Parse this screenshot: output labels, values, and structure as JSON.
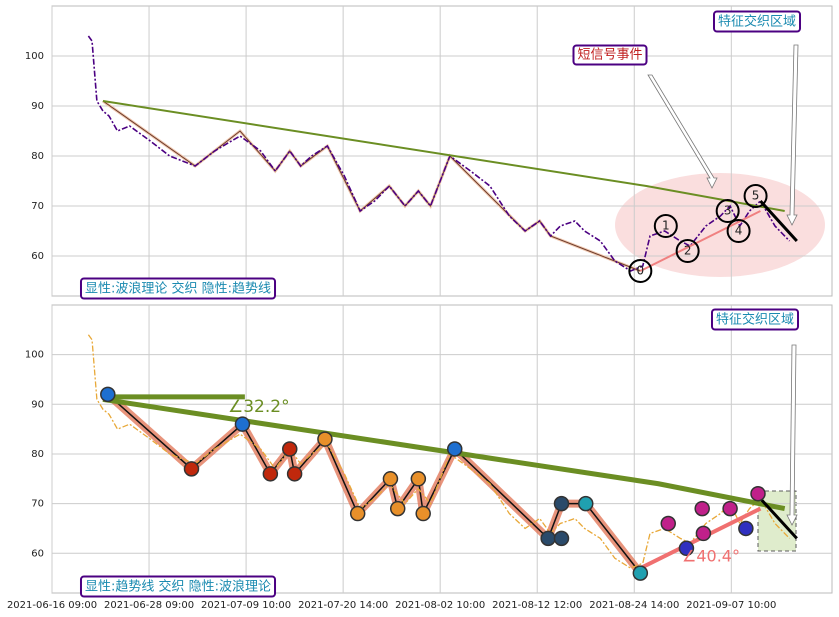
{
  "chart_data": [
    {
      "type": "line",
      "x": [
        30,
        33,
        37,
        42,
        47,
        54,
        64,
        81,
        97,
        118,
        134,
        155,
        172,
        184,
        196,
        205,
        214,
        227,
        241,
        254,
        266,
        278,
        291,
        302,
        312,
        328,
        345,
        361,
        377,
        390,
        402,
        411,
        419,
        431,
        439,
        452,
        464,
        477,
        487,
        493,
        505,
        518,
        526,
        539,
        551,
        559,
        567,
        575,
        584,
        596,
        608
      ],
      "series": [
        {
          "color": "#4b0082",
          "values": [
            104,
            103,
            91,
            89,
            88,
            85,
            86,
            83,
            80,
            78,
            81,
            84,
            81,
            77,
            81,
            78,
            80,
            82,
            76,
            69,
            71,
            74,
            70,
            73,
            70,
            80,
            77,
            74,
            68,
            65,
            67,
            64,
            66,
            67,
            65,
            63,
            59,
            57,
            58,
            64,
            65,
            63,
            62,
            66,
            68,
            70,
            66,
            69,
            71,
            66,
            63
          ]
        }
      ],
      "wave": {
        "color": "#6b3a2a",
        "x": [
          42,
          118,
          155,
          184,
          196,
          205,
          227,
          254,
          278,
          291,
          302,
          312,
          328,
          390,
          402,
          411,
          485
        ],
        "values": [
          91,
          78,
          85,
          77,
          81,
          78,
          82,
          69,
          74,
          70,
          73,
          70,
          80,
          65,
          67,
          64,
          57
        ]
      },
      "trend": {
        "color": "#6b8e23",
        "x": [
          42,
          490,
          604
        ],
        "values": [
          91,
          74,
          69
        ]
      },
      "pink": {
        "color": "#f08080",
        "x": [
          485,
          584
        ],
        "values": [
          57,
          69
        ]
      },
      "black": {
        "color": "#000000",
        "x": [
          584,
          614
        ],
        "values": [
          71,
          63
        ]
      },
      "wave_labels": {
        "labels": [
          "0",
          "1",
          "2",
          "3",
          "4",
          "5"
        ],
        "x": [
          485,
          506,
          524,
          557,
          566,
          580
        ],
        "values": [
          57,
          66,
          61,
          69,
          65,
          72
        ]
      },
      "annotations": [
        "特征交织区域",
        "短信号事件",
        "显性:波浪理论 交织 隐性:趋势线"
      ],
      "xlim": [
        0,
        643
      ],
      "ylim": [
        52,
        110
      ],
      "yticks": [
        60,
        70,
        80,
        90,
        100
      ],
      "grid": true
    },
    {
      "type": "line",
      "x": [
        30,
        33,
        37,
        42,
        47,
        54,
        64,
        81,
        97,
        118,
        134,
        155,
        172,
        184,
        196,
        205,
        214,
        227,
        241,
        254,
        266,
        278,
        291,
        302,
        312,
        328,
        345,
        361,
        377,
        390,
        402,
        411,
        419,
        431,
        439,
        452,
        464,
        477,
        487,
        493,
        505,
        518,
        526,
        539,
        551,
        559,
        567,
        575,
        584,
        596,
        608
      ],
      "series": [
        {
          "color": "#e8a838",
          "values": [
            104,
            103,
            91,
            89,
            88,
            85,
            86,
            83,
            80,
            78,
            81,
            84,
            81,
            77,
            81,
            78,
            80,
            82,
            76,
            69,
            71,
            74,
            70,
            73,
            70,
            80,
            77,
            74,
            68,
            65,
            67,
            64,
            66,
            67,
            65,
            63,
            59,
            57,
            58,
            64,
            65,
            63,
            62,
            66,
            68,
            70,
            66,
            69,
            71,
            66,
            63
          ]
        }
      ],
      "wave": {
        "color": "#e07050",
        "x": [
          46,
          115,
          157,
          180,
          196,
          200,
          225,
          252,
          279,
          285,
          302,
          306,
          332,
          409,
          420,
          440,
          485
        ],
        "values": [
          92,
          77,
          86,
          76,
          81,
          76,
          83,
          68,
          75,
          69,
          75,
          68,
          81,
          63,
          70,
          70,
          56
        ]
      },
      "trend": {
        "color": "#6b8e23",
        "x": [
          42,
          500,
          604
        ],
        "values": [
          91,
          74,
          69
        ]
      },
      "hline": {
        "color": "#6b8e23",
        "x": [
          42,
          159
        ],
        "values": [
          91.5,
          91.5
        ]
      },
      "pink": {
        "color": "#f07070",
        "x": [
          485,
          584
        ],
        "values": [
          57,
          69
        ]
      },
      "black": {
        "color": "#000000",
        "x": [
          584,
          614
        ],
        "values": [
          71,
          63
        ]
      },
      "markers": {
        "x": [
          46,
          115,
          157,
          180,
          196,
          200,
          225,
          252,
          279,
          285,
          302,
          306,
          332,
          409,
          420,
          420,
          440,
          485,
          508,
          523,
          536,
          537,
          559,
          572,
          582
        ],
        "values": [
          92,
          77,
          86,
          76,
          81,
          76,
          83,
          68,
          75,
          69,
          75,
          68,
          81,
          63,
          70,
          63,
          70,
          56,
          66,
          61,
          69,
          64,
          69,
          65,
          72
        ],
        "colors": [
          "#1e6fd0",
          "#c0280c",
          "#1e6fd0",
          "#c0280c",
          "#c0280c",
          "#c0280c",
          "#e8902a",
          "#e8902a",
          "#e8902a",
          "#e8902a",
          "#e8902a",
          "#e8902a",
          "#1e6fd0",
          "#2a4a6a",
          "#2a4a6a",
          "#2a4a6a",
          "#20a0b0",
          "#20a0b0",
          "#c0208a",
          "#3030c0",
          "#c0208a",
          "#c0208a",
          "#c0208a",
          "#3030c0",
          "#c0208a"
        ]
      },
      "angles": [
        "∠32.2°",
        "∠40.4°"
      ],
      "annotations": [
        "特征交织区域",
        "显性:趋势线 交织 隐性:波浪理论"
      ],
      "xlim": [
        0,
        643
      ],
      "ylim": [
        52,
        110
      ],
      "yticks": [
        60,
        70,
        80,
        90,
        100
      ],
      "grid": true,
      "xticks": [
        {
          "value": 0,
          "label": "2021-06-16 09:00"
        },
        {
          "value": 80,
          "label": "2021-06-28 09:00"
        },
        {
          "value": 160,
          "label": "2021-07-09 10:00"
        },
        {
          "value": 240,
          "label": "2021-07-20 14:00"
        },
        {
          "value": 320,
          "label": "2021-08-02 10:00"
        },
        {
          "value": 400,
          "label": "2021-08-12 12:00"
        },
        {
          "value": 480,
          "label": "2021-08-24 14:00"
        },
        {
          "value": 560,
          "label": "2021-09-07 10:00"
        }
      ]
    }
  ]
}
